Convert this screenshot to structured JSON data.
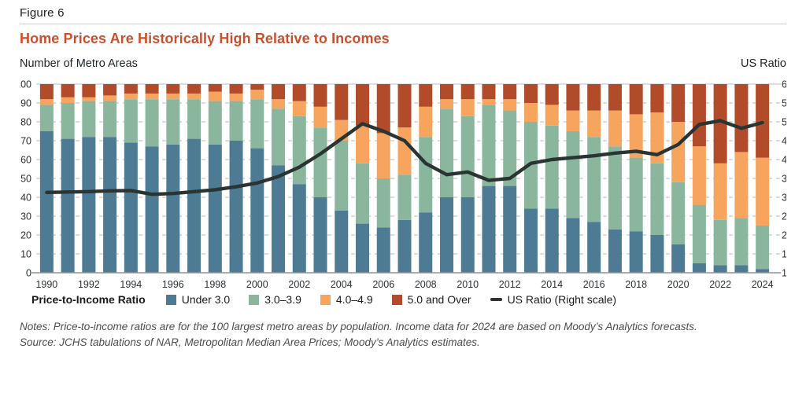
{
  "header": {
    "figure_label": "Figure 6",
    "title": "Home Prices Are Historically High Relative to Incomes"
  },
  "chart": {
    "left_axis_title": "Number of Metro Areas",
    "right_axis_title": "US Ratio"
  },
  "chart_data": {
    "type": "bar",
    "stacked": true,
    "title": "Home Prices Are Historically High Relative to Incomes",
    "xlabel": "",
    "ylabel_left": "Number of Metro Areas",
    "ylabel_right": "US Ratio",
    "left_axis": {
      "min": 0,
      "max": 100,
      "tick_step": 10
    },
    "right_axis": {
      "min": 1.0,
      "max": 6.0,
      "tick_step": 0.5
    },
    "x_tick_step": 2,
    "grid": "dashed-horizontal",
    "legend_position": "bottom",
    "categories": [
      1990,
      1991,
      1992,
      1993,
      1994,
      1995,
      1996,
      1997,
      1998,
      1999,
      2000,
      2001,
      2002,
      2003,
      2004,
      2005,
      2006,
      2007,
      2008,
      2009,
      2010,
      2011,
      2012,
      2013,
      2014,
      2015,
      2016,
      2017,
      2018,
      2019,
      2020,
      2021,
      2022,
      2023,
      2024
    ],
    "series": [
      {
        "name": "Under 3.0",
        "kind": "bar",
        "color": "#4d7b94",
        "values": [
          75,
          71,
          72,
          72,
          69,
          67,
          68,
          71,
          68,
          70,
          66,
          57,
          47,
          40,
          33,
          26,
          24,
          28,
          32,
          40,
          40,
          46,
          46,
          34,
          34,
          29,
          27,
          23,
          22,
          20,
          15,
          5,
          4,
          4,
          2
        ]
      },
      {
        "name": "3.0–3.9",
        "kind": "bar",
        "color": "#8ab69e",
        "values": [
          14,
          19,
          19,
          19,
          23,
          25,
          24,
          21,
          23,
          21,
          26,
          30,
          36,
          37,
          37,
          32,
          26,
          24,
          40,
          47,
          43,
          43,
          40,
          46,
          44,
          46,
          45,
          44,
          39,
          38,
          33,
          31,
          24,
          25,
          23
        ]
      },
      {
        "name": "4.0–4.9",
        "kind": "bar",
        "color": "#f7a45e",
        "values": [
          3,
          3,
          2,
          3,
          3,
          3,
          3,
          3,
          5,
          4,
          5,
          5,
          8,
          11,
          11,
          20,
          24,
          25,
          16,
          5,
          9,
          3,
          6,
          10,
          11,
          11,
          14,
          19,
          23,
          27,
          32,
          31,
          30,
          35,
          36
        ]
      },
      {
        "name": "5.0 and Over",
        "kind": "bar",
        "color": "#b24b2a",
        "values": [
          8,
          7,
          7,
          6,
          5,
          5,
          5,
          5,
          4,
          5,
          3,
          8,
          9,
          12,
          19,
          22,
          26,
          23,
          12,
          8,
          8,
          8,
          8,
          10,
          11,
          14,
          14,
          14,
          16,
          15,
          20,
          33,
          42,
          36,
          39
        ]
      },
      {
        "name": "US Ratio (Right scale)",
        "kind": "line",
        "axis": "right",
        "color": "#2a3433",
        "values": [
          3.13,
          3.14,
          3.15,
          3.17,
          3.18,
          3.08,
          3.1,
          3.15,
          3.2,
          3.28,
          3.38,
          3.55,
          3.8,
          4.15,
          4.55,
          4.95,
          4.75,
          4.5,
          3.9,
          3.6,
          3.67,
          3.45,
          3.5,
          3.9,
          4.0,
          4.05,
          4.1,
          4.17,
          4.22,
          4.13,
          4.4,
          4.93,
          5.03,
          4.83,
          4.98
        ]
      }
    ],
    "colors": {
      "grid": "#c6c6c6",
      "axis_line": "#8d9296",
      "top_rule": "#c9c9c9"
    }
  },
  "legend": {
    "title": "Price-to-Income Ratio",
    "items": [
      {
        "label": "Under 3.0",
        "color": "#4d7b94",
        "swatch": "square"
      },
      {
        "label": "3.0–3.9",
        "color": "#8ab69e",
        "swatch": "square"
      },
      {
        "label": "4.0–4.9",
        "color": "#f7a45e",
        "swatch": "square"
      },
      {
        "label": "5.0 and Over",
        "color": "#b24b2a",
        "swatch": "square"
      },
      {
        "label": "US Ratio (Right scale)",
        "color": "#2a3433",
        "swatch": "line"
      }
    ]
  },
  "footer": {
    "notes": "Notes: Price-to-income ratios are for the 100 largest metro areas by population. Income data for 2024 are based on Moody’s Analytics forecasts.",
    "source": "Source: JCHS tabulations of NAR, Metropolitan Median Area Prices; Moody’s Analytics estimates."
  }
}
